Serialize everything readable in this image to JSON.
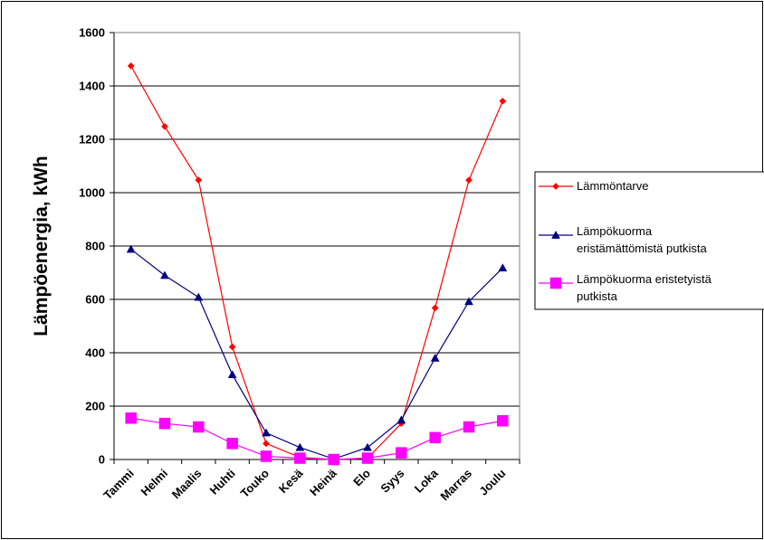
{
  "chart_data": {
    "type": "line",
    "title": "",
    "xlabel": "",
    "ylabel": "Lämpöenergia, kWh",
    "ylim": [
      0,
      1600
    ],
    "yticks": [
      0,
      200,
      400,
      600,
      800,
      1000,
      1200,
      1400,
      1600
    ],
    "categories": [
      "Tammi",
      "Helmi",
      "Maalis",
      "Huhti",
      "Touko",
      "Kesä",
      "Heinä",
      "Elo",
      "Syys",
      "Loka",
      "Marras",
      "Joulu"
    ],
    "grid": true,
    "legend_position": "right",
    "series": [
      {
        "name": "Lämmöntarve",
        "color": "#ff0000",
        "marker": "diamond",
        "legend_lines": [
          "Lämmöntarve"
        ],
        "values": [
          1475,
          1248,
          1047,
          422,
          60,
          8,
          0,
          5,
          135,
          568,
          1047,
          1343
        ]
      },
      {
        "name": "Lämpökuorma eristämättömistä putkista",
        "color": "#000080",
        "marker": "triangle",
        "legend_lines": [
          "Lämpökuorma",
          "eristämättömistä putkista"
        ],
        "values": [
          788,
          690,
          608,
          318,
          100,
          45,
          2,
          45,
          148,
          380,
          592,
          718
        ]
      },
      {
        "name": "Lämpökuorma eristetyistä putkista",
        "color": "#ff00ff",
        "marker": "square",
        "legend_lines": [
          "Lämpökuorma eristetyistä",
          "putkista"
        ],
        "values": [
          155,
          135,
          122,
          60,
          12,
          5,
          0,
          5,
          25,
          82,
          122,
          145
        ]
      }
    ]
  }
}
